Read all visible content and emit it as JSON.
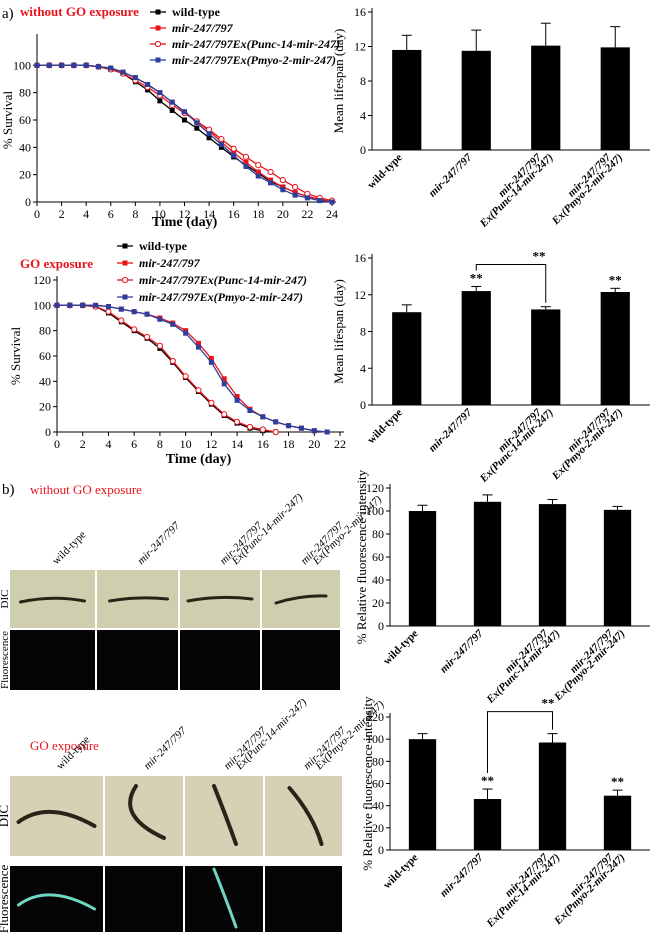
{
  "panel_a_label": "a)",
  "panel_b_label": "b)",
  "chart_data": [
    {
      "type": "line",
      "title": "without GO exposure",
      "xlabel": "Time (day)",
      "ylabel": "% Survival",
      "x": [
        0,
        1,
        2,
        3,
        4,
        5,
        6,
        7,
        8,
        9,
        10,
        11,
        12,
        13,
        14,
        15,
        16,
        17,
        18,
        19,
        20,
        21,
        22,
        23,
        24
      ],
      "xlim": [
        0,
        24
      ],
      "xticks": [
        0,
        2,
        4,
        6,
        8,
        10,
        12,
        14,
        16,
        18,
        20,
        22,
        24
      ],
      "ylim": [
        0,
        120
      ],
      "yticks": [
        0,
        20,
        40,
        60,
        80,
        100
      ],
      "series": [
        {
          "name": "wild-type",
          "color": "#000000",
          "marker": "square",
          "values": [
            100,
            100,
            100,
            100,
            100,
            99,
            97,
            94,
            88,
            82,
            74,
            67,
            60,
            54,
            47,
            40,
            33,
            27,
            21,
            15,
            11,
            7,
            4,
            2,
            0
          ]
        },
        {
          "name": "mir-247/797",
          "color": "#e8141b",
          "marker": "square",
          "values": [
            100,
            100,
            100,
            100,
            100,
            99,
            98,
            95,
            91,
            86,
            80,
            73,
            66,
            59,
            52,
            44,
            36,
            29,
            22,
            16,
            11,
            7,
            4,
            2,
            0
          ]
        },
        {
          "name": "mir-247/797Ex(Punc-14-mir-247)",
          "color": "#e8141b",
          "marker": "circle-open",
          "values": [
            100,
            100,
            100,
            100,
            100,
            99,
            97,
            94,
            89,
            84,
            78,
            71,
            65,
            59,
            53,
            46,
            39,
            33,
            27,
            22,
            16,
            11,
            6,
            3,
            1
          ]
        },
        {
          "name": "mir-247/797Ex(Pmyo-2-mir-247)",
          "color": "#2c3e9e",
          "marker": "square",
          "values": [
            100,
            100,
            100,
            100,
            100,
            99,
            98,
            95,
            91,
            86,
            80,
            73,
            66,
            58,
            50,
            42,
            34,
            26,
            19,
            14,
            9,
            5,
            3,
            1,
            0
          ]
        }
      ]
    },
    {
      "type": "bar",
      "ylabel": "Mean lifespan (day)",
      "color": "#000000",
      "categories": [
        [
          "wild-type"
        ],
        [
          "mir-247/797"
        ],
        [
          "mir-247/797",
          "Ex(Punc-14-mir-247)"
        ],
        [
          "mir-247/797",
          "Ex(Pmyo-2-mir-247)"
        ]
      ],
      "values": [
        11.6,
        11.5,
        12.1,
        11.9
      ],
      "errors": [
        1.7,
        2.4,
        2.6,
        2.4
      ],
      "ylim": [
        0,
        16
      ],
      "yticks": [
        0,
        4,
        8,
        12,
        16
      ]
    },
    {
      "type": "line",
      "title": "GO exposure",
      "xlabel": "Time (day)",
      "ylabel": "% Survival",
      "x": [
        0,
        1,
        2,
        3,
        4,
        5,
        6,
        7,
        8,
        9,
        10,
        11,
        12,
        13,
        14,
        15,
        16,
        17,
        18,
        19,
        20,
        21,
        22
      ],
      "xlim": [
        0,
        22
      ],
      "xticks": [
        0,
        2,
        4,
        6,
        8,
        10,
        12,
        14,
        16,
        18,
        20,
        22
      ],
      "ylim": [
        0,
        120
      ],
      "yticks": [
        0,
        20,
        40,
        60,
        80,
        100,
        120
      ],
      "series": [
        {
          "name": "wild-type",
          "color": "#000000",
          "marker": "square",
          "values": [
            100,
            100,
            100,
            99,
            94,
            87,
            80,
            74,
            66,
            55,
            43,
            32,
            22,
            13,
            7,
            3,
            1,
            0,
            null,
            null,
            null,
            null,
            null
          ]
        },
        {
          "name": "mir-247/797",
          "color": "#e8141b",
          "marker": "square",
          "values": [
            100,
            100,
            100,
            100,
            99,
            97,
            95,
            93,
            90,
            86,
            80,
            70,
            58,
            42,
            28,
            18,
            12,
            8,
            5,
            3,
            1,
            0,
            null
          ]
        },
        {
          "name": "mir-247/797Ex(Punc-14-mir-247)",
          "color": "#e8141b",
          "marker": "circle-open",
          "values": [
            100,
            100,
            100,
            99,
            95,
            88,
            81,
            75,
            68,
            56,
            44,
            33,
            23,
            14,
            8,
            4,
            2,
            0,
            null,
            null,
            null,
            null,
            null
          ]
        },
        {
          "name": "mir-247/797Ex(Pmyo-2-mir-247)",
          "color": "#2c3e9e",
          "marker": "square",
          "values": [
            100,
            100,
            100,
            100,
            99,
            97,
            95,
            93,
            89,
            85,
            78,
            67,
            55,
            38,
            25,
            17,
            12,
            8,
            5,
            3,
            1,
            0,
            null
          ]
        }
      ]
    },
    {
      "type": "bar",
      "ylabel": "Mean lifespan (day)",
      "color": "#000000",
      "categories": [
        [
          "wild-type"
        ],
        [
          "mir-247/797"
        ],
        [
          "mir-247/797",
          "Ex(Punc-14-mir-247)"
        ],
        [
          "mir-247/797",
          "Ex(Pmyo-2-mir-247)"
        ]
      ],
      "values": [
        10.1,
        12.4,
        10.4,
        12.3
      ],
      "errors": [
        0.8,
        0.5,
        0.3,
        0.4
      ],
      "significance": [
        null,
        "**",
        null,
        "**"
      ],
      "bracket_label": "**",
      "ylim": [
        0,
        16
      ],
      "yticks": [
        0,
        4,
        8,
        12,
        16
      ]
    },
    {
      "type": "bar",
      "ylabel": "% Relative fluorescence intensity",
      "color": "#000000",
      "categories": [
        [
          "wild-type"
        ],
        [
          "mir-247/797"
        ],
        [
          "mir-247/797",
          "Ex(Punc-14-mir-247)"
        ],
        [
          "mir-247/797",
          "Ex(Pmyo-2-mir-247)"
        ]
      ],
      "values": [
        100,
        108,
        106,
        101
      ],
      "errors": [
        5,
        6,
        4,
        3
      ],
      "ylim": [
        0,
        120
      ],
      "yticks": [
        0,
        20,
        40,
        60,
        80,
        100,
        120
      ]
    },
    {
      "type": "bar",
      "ylabel": "% Relative fluorescence intensity",
      "color": "#000000",
      "categories": [
        [
          "wild-type"
        ],
        [
          "mir-247/797"
        ],
        [
          "mir-247/797",
          "Ex(Punc-14-mir-247)"
        ],
        [
          "mir-247/797",
          "Ex(Pmyo-2-mir-247)"
        ]
      ],
      "values": [
        100,
        46,
        97,
        49
      ],
      "errors": [
        5,
        9,
        8,
        5
      ],
      "significance": [
        null,
        "**",
        null,
        "**"
      ],
      "bracket_label": "**",
      "ylim": [
        0,
        120
      ],
      "yticks": [
        0,
        20,
        40,
        60,
        80,
        100,
        120
      ]
    }
  ],
  "images": [
    {
      "title": "without GO exposure",
      "columns": [
        [
          "wild-type"
        ],
        [
          "mir-247/797"
        ],
        [
          "mir-247/797",
          "Ex(Punc-14-mir-247)"
        ],
        [
          "mir-247/797",
          "Ex(Pmyo-2-mir-247)"
        ]
      ],
      "rows": [
        "DIC",
        "Fluorescence"
      ]
    },
    {
      "title": "GO exposure",
      "columns": [
        [
          "wild-type"
        ],
        [
          "mir-247/797"
        ],
        [
          "mir-247/797",
          "Ex(Punc-14-mir-247)"
        ],
        [
          "mir-247/797",
          "Ex(Pmyo-2-mir-247)"
        ]
      ],
      "rows": [
        "DIC",
        "Fluorescence"
      ]
    }
  ]
}
